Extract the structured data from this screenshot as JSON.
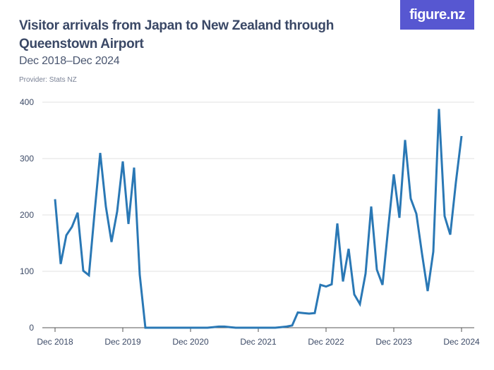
{
  "header": {
    "title": "Visitor arrivals from Japan to New Zealand through Queenstown Airport",
    "subtitle": "Dec 2018–Dec 2024",
    "provider": "Provider: Stats NZ",
    "logo": "figure.nz"
  },
  "colors": {
    "line": "#2a78b5",
    "logo_bg": "#5757d1",
    "grid": "#e2e2e2"
  },
  "chart_data": {
    "type": "line",
    "title": "Visitor arrivals from Japan to New Zealand through Queenstown Airport",
    "subtitle": "Dec 2018–Dec 2024",
    "xlabel": "",
    "ylabel": "",
    "ylim": [
      0,
      400
    ],
    "yticks": [
      "0",
      "100",
      "200",
      "300",
      "400"
    ],
    "xticks": [
      "Dec 2018",
      "Dec 2019",
      "Dec 2020",
      "Dec 2021",
      "Dec 2022",
      "Dec 2023",
      "Dec 2024"
    ],
    "grid": true,
    "x": [
      "2018-12",
      "2019-01",
      "2019-02",
      "2019-03",
      "2019-04",
      "2019-05",
      "2019-06",
      "2019-07",
      "2019-08",
      "2019-09",
      "2019-10",
      "2019-11",
      "2019-12",
      "2020-01",
      "2020-02",
      "2020-03",
      "2020-04",
      "2020-05",
      "2020-06",
      "2020-07",
      "2020-08",
      "2020-09",
      "2020-10",
      "2020-11",
      "2020-12",
      "2021-01",
      "2021-02",
      "2021-03",
      "2021-04",
      "2021-05",
      "2021-06",
      "2021-07",
      "2021-08",
      "2021-09",
      "2021-10",
      "2021-11",
      "2021-12",
      "2022-01",
      "2022-02",
      "2022-03",
      "2022-04",
      "2022-05",
      "2022-06",
      "2022-07",
      "2022-08",
      "2022-09",
      "2022-10",
      "2022-11",
      "2022-12",
      "2023-01",
      "2023-02",
      "2023-03",
      "2023-04",
      "2023-05",
      "2023-06",
      "2023-07",
      "2023-08",
      "2023-09",
      "2023-10",
      "2023-11",
      "2023-12",
      "2024-01",
      "2024-02",
      "2024-03",
      "2024-04",
      "2024-05",
      "2024-06",
      "2024-07",
      "2024-08",
      "2024-09",
      "2024-10",
      "2024-11",
      "2024-12"
    ],
    "values": [
      228,
      113,
      164,
      179,
      204,
      101,
      93,
      204,
      310,
      215,
      152,
      206,
      295,
      184,
      284,
      94,
      0,
      0,
      0,
      0,
      0,
      0,
      0,
      0,
      0,
      0,
      0,
      0,
      1,
      2,
      2,
      1,
      0,
      0,
      0,
      0,
      0,
      0,
      0,
      0,
      1,
      2,
      4,
      27,
      26,
      25,
      26,
      76,
      73,
      77,
      185,
      82,
      140,
      59,
      42,
      96,
      215,
      103,
      76,
      176,
      272,
      195,
      333,
      229,
      202,
      131,
      65,
      135,
      388,
      198,
      165,
      258,
      340
    ]
  }
}
